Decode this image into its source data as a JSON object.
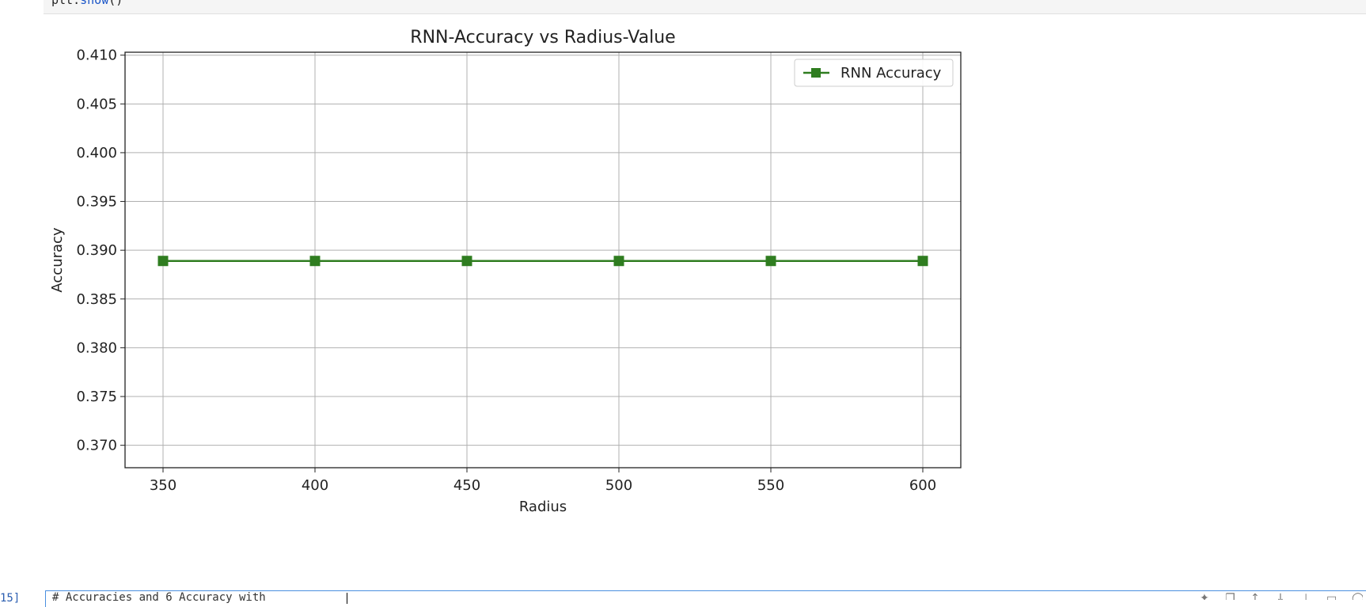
{
  "prev_cell": {
    "code_prefix": "plt.",
    "code_fn": "show",
    "code_suffix": "()"
  },
  "chart_data": {
    "type": "line",
    "title": "RNN-Accuracy vs Radius-Value",
    "xlabel": "Radius",
    "ylabel": "Accuracy",
    "x": [
      350,
      400,
      450,
      500,
      550,
      600
    ],
    "series": [
      {
        "name": "RNN Accuracy",
        "values": [
          0.3889,
          0.3889,
          0.3889,
          0.3889,
          0.3889,
          0.3889
        ],
        "color": "#2f7d20",
        "marker": "square"
      }
    ],
    "xlim": [
      337.5,
      612.5
    ],
    "ylim": [
      0.3677,
      0.4103
    ],
    "xticks": [
      350,
      400,
      450,
      500,
      550,
      600
    ],
    "xtick_labels": [
      "350",
      "400",
      "450",
      "500",
      "550",
      "600"
    ],
    "yticks": [
      0.37,
      0.375,
      0.38,
      0.385,
      0.39,
      0.395,
      0.4,
      0.405,
      0.41
    ],
    "ytick_labels": [
      "0.370",
      "0.375",
      "0.380",
      "0.385",
      "0.390",
      "0.395",
      "0.400",
      "0.405",
      "0.410"
    ],
    "grid": true,
    "legend_position": "top-right"
  },
  "next_cell": {
    "prompt": "15]",
    "code": "# Accuracies and 6 Accuracy with"
  },
  "toolbar": {
    "icons": [
      "sparkle-icon",
      "copy-icon",
      "move-up-icon",
      "move-down-icon",
      "add-icon",
      "more-icon",
      "delete-icon"
    ]
  }
}
